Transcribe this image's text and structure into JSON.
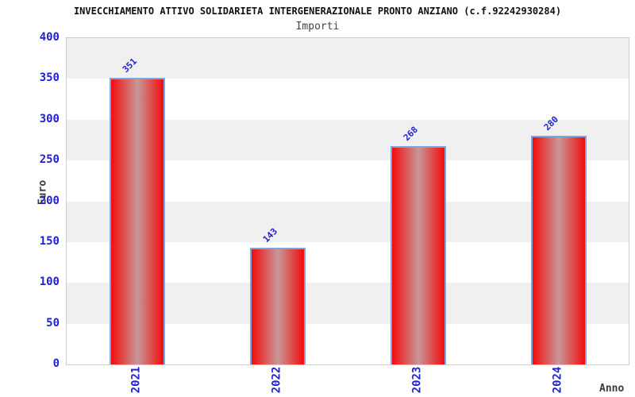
{
  "chart_data": {
    "type": "bar",
    "title": "INVECCHIAMENTO ATTIVO SOLIDARIETA INTERGENERAZIONALE PRONTO ANZIANO (c.f.92242930284)",
    "subtitle": "Importi",
    "xlabel": "Anno",
    "ylabel": "Euro",
    "categories": [
      "2021",
      "2022",
      "2023",
      "2024"
    ],
    "values": [
      351,
      143,
      268,
      280
    ],
    "ylim": [
      0,
      400
    ],
    "ytick_step": 50,
    "grid": "horizontal-alternating-bands",
    "legend_position": "none",
    "bar_value_labels": [
      "351",
      "143",
      "268",
      "280"
    ],
    "colors": {
      "bar_edge_red": "#f20c0c",
      "bar_center": "#c89898",
      "bar_border_blue": "#7aa7e0",
      "band_gray": "#f0f0f0",
      "band_white": "#ffffff",
      "plot_border": "#cccccc",
      "tick_label_blue": "#2222cc",
      "title_color": "#111111",
      "subtitle_color": "#444444",
      "axis_title_color": "#3a3a3a"
    }
  }
}
